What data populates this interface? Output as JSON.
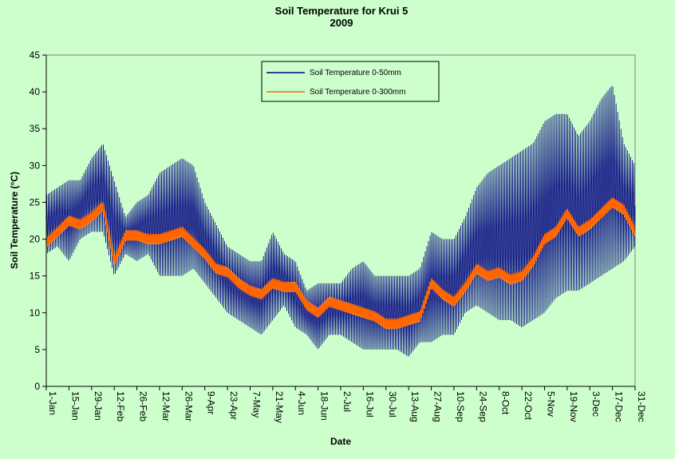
{
  "chart_data": {
    "type": "line",
    "title": "Soil Temperature for Krui 5",
    "subtitle": "2009",
    "xlabel": "Date",
    "ylabel": "Soil Temperature (°C)",
    "ylim": [
      0,
      45
    ],
    "yticks": [
      0,
      5,
      10,
      15,
      20,
      25,
      30,
      35,
      40,
      45
    ],
    "x_tick_labels": [
      "1-Jan",
      "15-Jan",
      "29-Jan",
      "12-Feb",
      "26-Feb",
      "12-Mar",
      "26-Mar",
      "9-Apr",
      "23-Apr",
      "7-May",
      "21-May",
      "4-Jun",
      "18-Jun",
      "2-Jul",
      "16-Jul",
      "30-Jul",
      "13-Aug",
      "27-Aug",
      "10-Sep",
      "24-Sep",
      "8-Oct",
      "22-Oct",
      "5-Nov",
      "19-Nov",
      "3-Dec",
      "17-Dec",
      "31-Dec"
    ],
    "x_tick_days": [
      0,
      14,
      28,
      42,
      56,
      70,
      84,
      98,
      112,
      126,
      140,
      154,
      168,
      182,
      196,
      210,
      224,
      238,
      252,
      266,
      280,
      294,
      308,
      322,
      336,
      350,
      364
    ],
    "grid": false,
    "legend_position": "top-center",
    "series": [
      {
        "name": "Soil Temperature 0-50mm",
        "color": "#000080",
        "x_days": [
          0,
          7,
          14,
          21,
          28,
          35,
          42,
          49,
          56,
          63,
          70,
          77,
          84,
          91,
          98,
          105,
          112,
          119,
          126,
          133,
          140,
          147,
          154,
          161,
          168,
          175,
          182,
          189,
          196,
          203,
          210,
          217,
          224,
          231,
          238,
          245,
          252,
          259,
          266,
          273,
          280,
          287,
          294,
          301,
          308,
          315,
          322,
          329,
          336,
          343,
          350,
          357,
          364
        ],
        "daily_max": [
          26,
          27,
          28,
          28,
          31,
          33,
          28,
          23,
          25,
          26,
          29,
          30,
          31,
          30,
          25,
          22,
          19,
          18,
          17,
          17,
          21,
          18,
          17,
          13,
          14,
          14,
          14,
          16,
          17,
          15,
          15,
          15,
          15,
          16,
          21,
          20,
          20,
          23,
          27,
          29,
          30,
          31,
          32,
          33,
          36,
          37,
          37,
          34,
          36,
          39,
          41,
          33,
          30
        ],
        "daily_min": [
          18,
          19,
          17,
          20,
          21,
          21,
          15,
          18,
          17,
          18,
          15,
          15,
          15,
          16,
          14,
          12,
          10,
          9,
          8,
          7,
          9,
          11,
          8,
          7,
          5,
          7,
          7,
          6,
          5,
          5,
          5,
          5,
          4,
          6,
          6,
          7,
          7,
          10,
          11,
          10,
          9,
          9,
          8,
          9,
          10,
          12,
          13,
          13,
          14,
          15,
          16,
          17,
          19
        ]
      },
      {
        "name": "Soil Temperature  0-300mm",
        "color": "#ff6600",
        "x_days": [
          0,
          7,
          14,
          21,
          28,
          35,
          42,
          49,
          56,
          63,
          70,
          77,
          84,
          91,
          98,
          105,
          112,
          119,
          126,
          133,
          140,
          147,
          154,
          161,
          168,
          175,
          182,
          189,
          196,
          203,
          210,
          217,
          224,
          231,
          238,
          245,
          252,
          259,
          266,
          273,
          280,
          287,
          294,
          301,
          308,
          315,
          322,
          329,
          336,
          343,
          350,
          357,
          364
        ],
        "values": [
          19.5,
          21,
          22.5,
          22,
          23,
          24.5,
          17,
          20.5,
          20.5,
          20,
          20,
          20.5,
          21,
          19.5,
          18,
          16,
          15.5,
          14,
          13,
          12.5,
          14,
          13.5,
          13.5,
          11,
          10,
          11.5,
          11,
          10.5,
          10,
          9.5,
          8.5,
          8.5,
          9,
          9.5,
          14,
          12.5,
          11.5,
          13.5,
          16,
          15,
          15.5,
          14.5,
          15,
          17,
          20,
          21,
          23.5,
          21,
          22,
          23.5,
          25,
          24,
          21
        ]
      }
    ]
  }
}
